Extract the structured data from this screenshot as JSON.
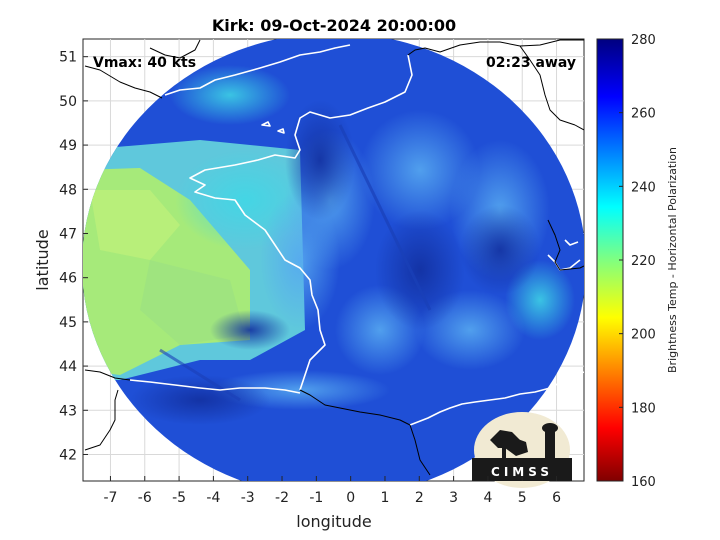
{
  "title": "Kirk: 09-Oct-2024 20:00:00",
  "annotations": {
    "vmax": "Vmax: 40 kts",
    "away": "02:23 away"
  },
  "axes": {
    "xlabel": "longitude",
    "ylabel": "latitude",
    "xlim": [
      -7.8,
      6.8
    ],
    "ylim": [
      41.4,
      51.4
    ],
    "xticks": [
      "-7",
      "-6",
      "-5",
      "-4",
      "-3",
      "-2",
      "-1",
      "0",
      "1",
      "2",
      "3",
      "4",
      "5",
      "6"
    ],
    "yticks": [
      "42",
      "43",
      "44",
      "45",
      "46",
      "47",
      "48",
      "49",
      "50",
      "51"
    ],
    "grid": true
  },
  "colorbar": {
    "label": "Brightness Temp - Horizontal Polarization",
    "ticks": [
      "160",
      "180",
      "200",
      "220",
      "240",
      "260",
      "280"
    ],
    "range": [
      160,
      280
    ],
    "colormap": "jet"
  },
  "logo": {
    "text": "CIMSS"
  },
  "colors": {
    "cold_background": "#1f4fd6",
    "deep_core": "#1533a6",
    "mid": "#2a8ae8",
    "cyan": "#3ad0e0",
    "warm_land": "#9ee880",
    "coastline": "#ffffff",
    "border": "#000000"
  }
}
